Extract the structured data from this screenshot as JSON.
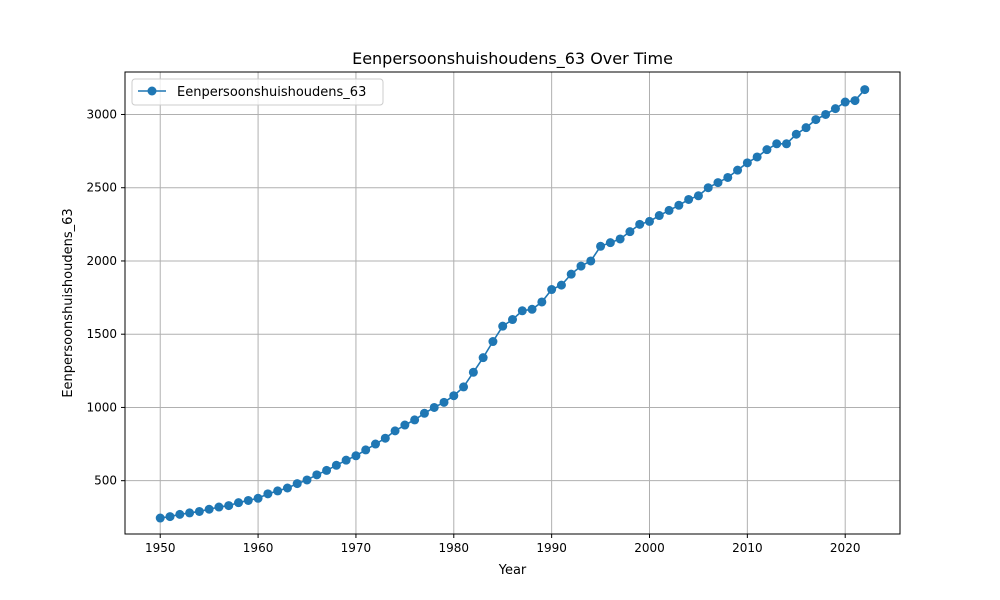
{
  "chart_data": {
    "type": "line",
    "title": "Eenpersoonshuishoudens_63 Over Time",
    "xlabel": "Year",
    "ylabel": "Eenpersoonshuishoudens_63",
    "xlim": [
      1946.4,
      2025.6
    ],
    "ylim": [
      136,
      3290
    ],
    "xticks": [
      1950,
      1960,
      1970,
      1980,
      1990,
      2000,
      2010,
      2020
    ],
    "yticks": [
      500,
      1000,
      1500,
      2000,
      2500,
      3000
    ],
    "grid": true,
    "legend_position": "top-left",
    "series": [
      {
        "name": "Eenpersoonshuishoudens_63",
        "color": "#1f77b4",
        "marker": "circle",
        "x": [
          1950,
          1951,
          1952,
          1953,
          1954,
          1955,
          1956,
          1957,
          1958,
          1959,
          1960,
          1961,
          1962,
          1963,
          1964,
          1965,
          1966,
          1967,
          1968,
          1969,
          1970,
          1971,
          1972,
          1973,
          1974,
          1975,
          1976,
          1977,
          1978,
          1979,
          1980,
          1981,
          1982,
          1983,
          1984,
          1985,
          1986,
          1987,
          1988,
          1989,
          1990,
          1991,
          1992,
          1993,
          1994,
          1995,
          1996,
          1997,
          1998,
          1999,
          2000,
          2001,
          2002,
          2003,
          2004,
          2005,
          2006,
          2007,
          2008,
          2009,
          2010,
          2011,
          2012,
          2013,
          2014,
          2015,
          2016,
          2017,
          2018,
          2019,
          2020,
          2021,
          2022
        ],
        "y": [
          245,
          255,
          270,
          280,
          290,
          305,
          320,
          330,
          350,
          365,
          380,
          410,
          430,
          450,
          480,
          505,
          540,
          570,
          605,
          640,
          670,
          710,
          750,
          790,
          840,
          880,
          915,
          960,
          1000,
          1035,
          1080,
          1140,
          1240,
          1340,
          1450,
          1555,
          1600,
          1660,
          1670,
          1720,
          1805,
          1835,
          1910,
          1965,
          2000,
          2100,
          2125,
          2150,
          2200,
          2250,
          2270,
          2310,
          2345,
          2380,
          2420,
          2445,
          2500,
          2535,
          2570,
          2620,
          2670,
          2710,
          2760,
          2800,
          2800,
          2865,
          2910,
          2965,
          3000,
          3040,
          3085,
          3095,
          3170
        ]
      }
    ]
  }
}
